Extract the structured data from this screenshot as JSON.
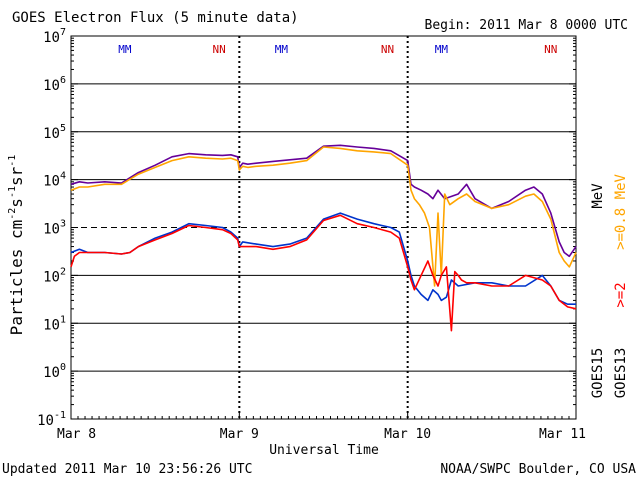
{
  "chart_data": {
    "type": "line",
    "title": "GOES Electron Flux (5 minute data)",
    "begin": "Begin: 2011 Mar 8 0000 UTC",
    "updated": "Updated 2011 Mar 10 23:56:26 UTC",
    "credit": "NOAA/SWPC Boulder, CO USA",
    "xlabel": "Universal Time",
    "ylabel": "Particles cm⁻²s⁻¹sr⁻¹",
    "ylabel_parts": {
      "main": "Particles cm",
      "e1": "-2",
      "mid": "s",
      "e2": "-1",
      "tail": "sr",
      "e3": "-1"
    },
    "x_unit": "days since 2011 Mar 8 0000 UTC",
    "xlim": [
      0,
      3
    ],
    "yscale": "log",
    "ylim_log10": [
      -1,
      7
    ],
    "ytick_exponents": [
      "7",
      "6",
      "5",
      "4",
      "3",
      "2",
      "1",
      "0",
      "-1"
    ],
    "xticks": [
      {
        "x": 0,
        "label": "Mar 8"
      },
      {
        "x": 1,
        "label": "Mar 9"
      },
      {
        "x": 2,
        "label": "Mar 10"
      },
      {
        "x": 3,
        "label": "Mar 11"
      }
    ],
    "threshold_log10": 3,
    "day_dividers": [
      1,
      2
    ],
    "markers": [
      {
        "x": 0.32,
        "label": "MM",
        "color": "#0000cc"
      },
      {
        "x": 0.88,
        "label": "NN",
        "color": "#cc0000"
      },
      {
        "x": 1.25,
        "label": "MM",
        "color": "#0000cc"
      },
      {
        "x": 1.88,
        "label": "NN",
        "color": "#cc0000"
      },
      {
        "x": 2.2,
        "label": "MM",
        "color": "#0000cc"
      },
      {
        "x": 2.85,
        "label": "NN",
        "color": "#cc0000"
      }
    ],
    "side_labels": [
      {
        "text": "MeV",
        "color": "#000000"
      },
      {
        "text": ">=0.8 MeV",
        "color": "#ffa500"
      },
      {
        "text": ">=2",
        "color": "#ff0000"
      },
      {
        "text": "GOES15",
        "color": "#000000"
      },
      {
        "text": "GOES13",
        "color": "#000000"
      }
    ],
    "series": [
      {
        "name": "GOES15 >=0.8 MeV",
        "color": "#660099",
        "x": [
          0,
          0.05,
          0.1,
          0.2,
          0.3,
          0.4,
          0.5,
          0.6,
          0.7,
          0.8,
          0.9,
          0.95,
          0.99,
          1.0,
          1.02,
          1.05,
          1.1,
          1.2,
          1.3,
          1.4,
          1.5,
          1.6,
          1.7,
          1.8,
          1.9,
          2.0,
          2.02,
          2.04,
          2.08,
          2.12,
          2.15,
          2.18,
          2.22,
          2.3,
          2.35,
          2.4,
          2.5,
          2.6,
          2.7,
          2.75,
          2.8,
          2.85,
          2.9,
          2.93,
          2.96,
          3.0
        ],
        "y": [
          8000,
          9000,
          8500,
          9000,
          8500,
          14000,
          20000,
          30000,
          35000,
          33000,
          32000,
          33000,
          30000,
          18000,
          22000,
          21000,
          22000,
          24000,
          26000,
          28000,
          50000,
          52000,
          48000,
          45000,
          40000,
          25000,
          8000,
          7000,
          6000,
          5000,
          4000,
          6000,
          4000,
          5000,
          8000,
          4000,
          2500,
          3500,
          6000,
          7000,
          5000,
          2000,
          500,
          300,
          250,
          400
        ]
      },
      {
        "name": "GOES13 >=0.8 MeV",
        "color": "#ffa500",
        "x": [
          0,
          0.05,
          0.1,
          0.2,
          0.3,
          0.4,
          0.5,
          0.6,
          0.7,
          0.8,
          0.9,
          0.95,
          0.99,
          1.0,
          1.02,
          1.05,
          1.1,
          1.2,
          1.3,
          1.4,
          1.5,
          1.6,
          1.7,
          1.8,
          1.9,
          2.0,
          2.02,
          2.04,
          2.07,
          2.1,
          2.13,
          2.16,
          2.18,
          2.2,
          2.22,
          2.25,
          2.3,
          2.35,
          2.4,
          2.5,
          2.6,
          2.7,
          2.75,
          2.8,
          2.85,
          2.9,
          2.93,
          2.96,
          3.0
        ],
        "y": [
          6000,
          7000,
          7000,
          8000,
          8000,
          13000,
          18000,
          25000,
          30000,
          28000,
          27000,
          28000,
          25000,
          16000,
          19000,
          18000,
          19000,
          20000,
          22000,
          25000,
          48000,
          45000,
          40000,
          38000,
          35000,
          20000,
          6000,
          4000,
          3000,
          2000,
          1000,
          60,
          2000,
          100,
          5000,
          3000,
          4000,
          5000,
          3500,
          2500,
          3000,
          4500,
          5000,
          3500,
          1500,
          300,
          200,
          150,
          300
        ]
      },
      {
        "name": "GOES15 >=2 MeV",
        "color": "#0033cc",
        "x": [
          0,
          0.05,
          0.1,
          0.2,
          0.3,
          0.35,
          0.4,
          0.5,
          0.6,
          0.7,
          0.8,
          0.9,
          0.95,
          0.99,
          1.0,
          1.02,
          1.1,
          1.2,
          1.3,
          1.4,
          1.5,
          1.6,
          1.7,
          1.8,
          1.9,
          1.95,
          2.0,
          2.02,
          2.04,
          2.08,
          2.12,
          2.15,
          2.18,
          2.2,
          2.23,
          2.26,
          2.3,
          2.4,
          2.5,
          2.6,
          2.7,
          2.8,
          2.85,
          2.9,
          2.95,
          3.0
        ],
        "y": [
          300,
          350,
          300,
          300,
          280,
          300,
          400,
          600,
          800,
          1200,
          1100,
          1000,
          800,
          600,
          400,
          500,
          450,
          400,
          450,
          600,
          1500,
          2000,
          1500,
          1200,
          1000,
          800,
          200,
          100,
          60,
          40,
          30,
          50,
          40,
          30,
          35,
          80,
          60,
          70,
          70,
          60,
          60,
          100,
          60,
          30,
          25,
          25
        ]
      },
      {
        "name": "GOES13 >=2 MeV",
        "color": "#ff0000",
        "x": [
          0,
          0.02,
          0.05,
          0.1,
          0.2,
          0.3,
          0.35,
          0.4,
          0.5,
          0.6,
          0.7,
          0.8,
          0.9,
          0.95,
          0.99,
          1.0,
          1.02,
          1.1,
          1.2,
          1.3,
          1.4,
          1.5,
          1.6,
          1.7,
          1.8,
          1.9,
          1.95,
          2.0,
          2.02,
          2.04,
          2.08,
          2.12,
          2.15,
          2.18,
          2.2,
          2.23,
          2.26,
          2.28,
          2.3,
          2.32,
          2.35,
          2.4,
          2.5,
          2.6,
          2.7,
          2.8,
          2.85,
          2.9,
          2.95,
          3.0
        ],
        "y": [
          150,
          250,
          300,
          300,
          300,
          280,
          300,
          400,
          550,
          750,
          1100,
          1000,
          900,
          750,
          550,
          400,
          400,
          400,
          350,
          400,
          550,
          1400,
          1800,
          1200,
          1000,
          800,
          600,
          150,
          80,
          50,
          100,
          200,
          100,
          60,
          100,
          150,
          7,
          120,
          100,
          80,
          70,
          70,
          60,
          60,
          100,
          80,
          60,
          30,
          22,
          20
        ]
      }
    ]
  }
}
